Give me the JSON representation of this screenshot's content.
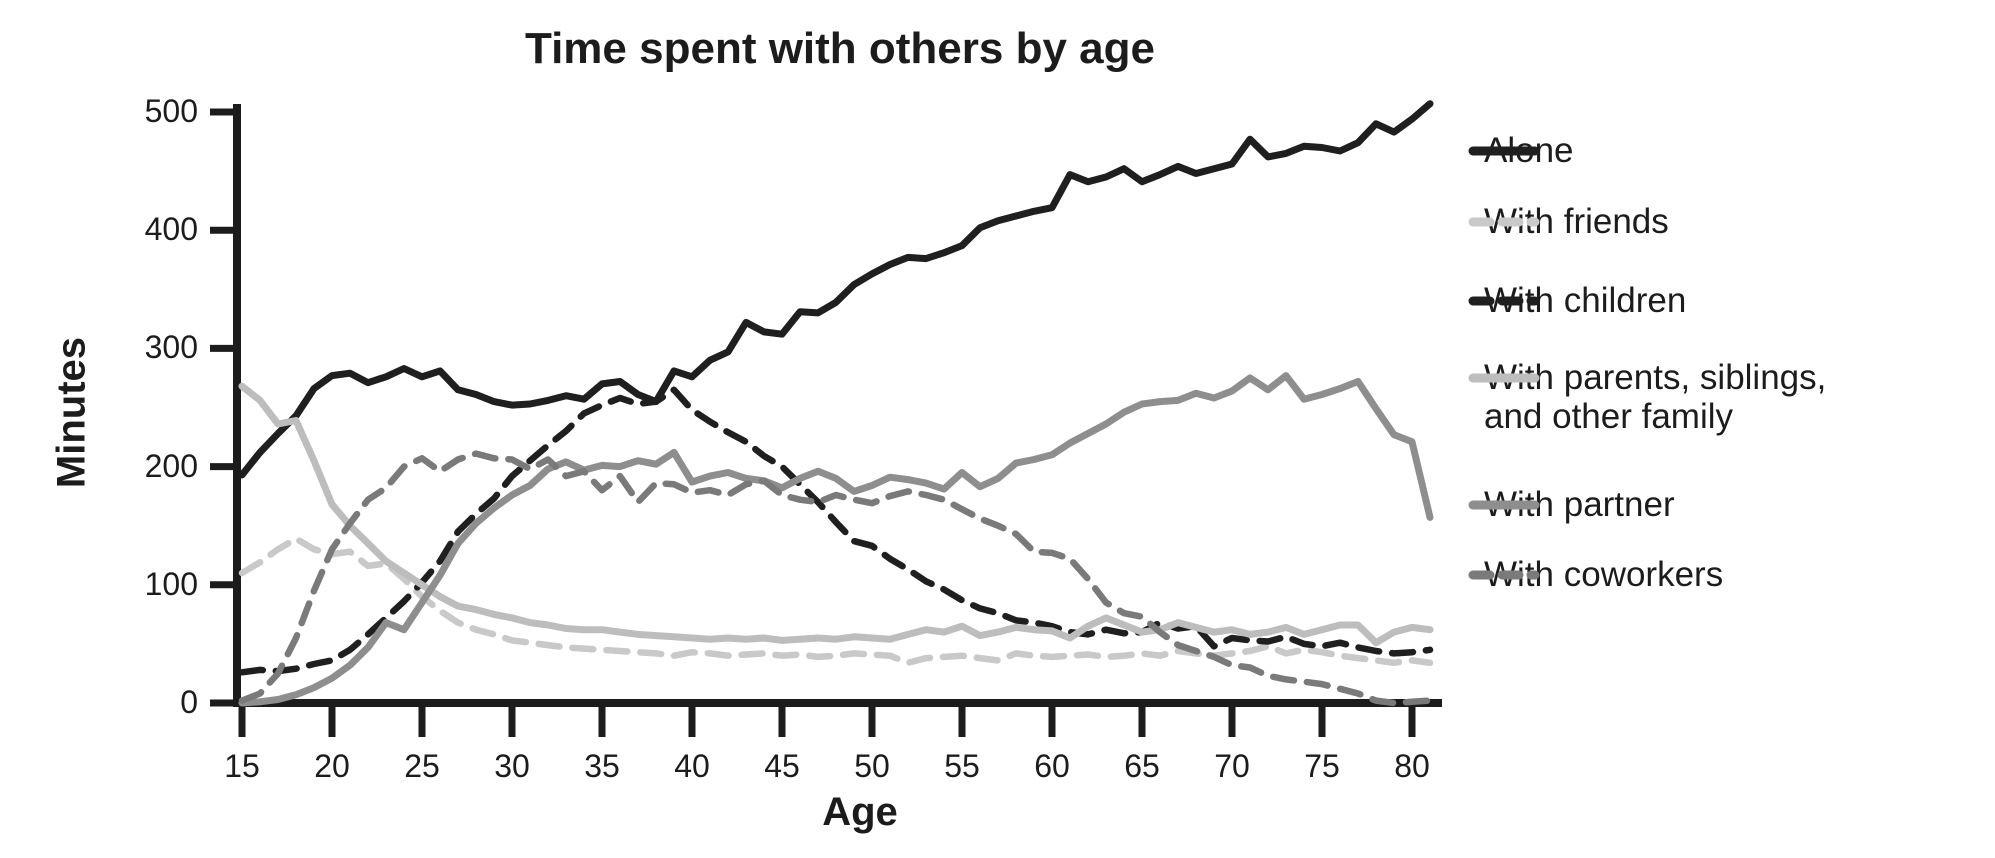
{
  "chart_data": {
    "type": "line",
    "title": "Time spent with others by age",
    "xlabel": "Age",
    "ylabel": "Minutes",
    "xlim": [
      15,
      81
    ],
    "ylim": [
      0,
      500
    ],
    "x_ticks": [
      15,
      20,
      25,
      30,
      35,
      40,
      45,
      50,
      55,
      60,
      65,
      70,
      75,
      80
    ],
    "y_ticks": [
      0,
      100,
      200,
      300,
      400,
      500
    ],
    "grid": false,
    "legend_position": "right",
    "axis_color": "#1c1c1c",
    "x": [
      15,
      16,
      17,
      18,
      19,
      20,
      21,
      22,
      23,
      24,
      25,
      26,
      27,
      28,
      29,
      30,
      31,
      32,
      33,
      34,
      35,
      36,
      37,
      38,
      39,
      40,
      41,
      42,
      43,
      44,
      45,
      46,
      47,
      48,
      49,
      50,
      51,
      52,
      53,
      54,
      55,
      56,
      57,
      58,
      59,
      60,
      61,
      62,
      63,
      64,
      65,
      66,
      67,
      68,
      69,
      70,
      71,
      72,
      73,
      74,
      75,
      76,
      77,
      78,
      79,
      80,
      81
    ],
    "series": [
      {
        "name": "Alone",
        "color": "#1f1f1f",
        "dash": "solid",
        "values": [
          193,
          212,
          228,
          243,
          266,
          277,
          279,
          271,
          276,
          283,
          276,
          281,
          265,
          261,
          255,
          252,
          253,
          256,
          260,
          257,
          270,
          272,
          261,
          255,
          281,
          276,
          290,
          297,
          322,
          314,
          312,
          331,
          330,
          339,
          354,
          363,
          371,
          377,
          376,
          381,
          387,
          402,
          408,
          412,
          416,
          419,
          447,
          441,
          445,
          452,
          441,
          447,
          454,
          448,
          452,
          456,
          477,
          462,
          465,
          471,
          470,
          467,
          474,
          490,
          483,
          494,
          507
        ]
      },
      {
        "name": "With friends",
        "color": "#c9c9c9",
        "dash": "dashed",
        "values": [
          110,
          119,
          130,
          139,
          130,
          126,
          128,
          116,
          118,
          105,
          90,
          78,
          68,
          62,
          58,
          53,
          51,
          49,
          47,
          46,
          45,
          44,
          43,
          42,
          40,
          43,
          42,
          40,
          41,
          42,
          40,
          41,
          39,
          40,
          42,
          41,
          40,
          34,
          38,
          39,
          40,
          38,
          36,
          42,
          40,
          39,
          40,
          41,
          39,
          40,
          42,
          40,
          44,
          42,
          40,
          42,
          44,
          48,
          42,
          45,
          43,
          40,
          38,
          36,
          34,
          36,
          34
        ]
      },
      {
        "name": "With children",
        "color": "#1f1f1f",
        "dash": "dashed",
        "values": [
          26,
          28,
          27,
          29,
          33,
          36,
          45,
          58,
          72,
          86,
          102,
          120,
          145,
          160,
          173,
          192,
          205,
          218,
          230,
          245,
          252,
          258,
          253,
          255,
          265,
          248,
          238,
          229,
          221,
          209,
          200,
          185,
          170,
          153,
          137,
          133,
          122,
          113,
          103,
          96,
          87,
          80,
          76,
          70,
          68,
          65,
          60,
          58,
          62,
          59,
          60,
          68,
          63,
          65,
          48,
          55,
          53,
          52,
          56,
          50,
          48,
          51,
          47,
          44,
          42,
          43,
          45
        ]
      },
      {
        "name": "With parents, siblings, and other family",
        "legend_lines": [
          "With parents, siblings,",
          "and other family"
        ],
        "color": "#bdbdbd",
        "dash": "solid",
        "values": [
          268,
          256,
          236,
          239,
          205,
          168,
          150,
          135,
          120,
          110,
          100,
          90,
          82,
          79,
          75,
          72,
          68,
          66,
          63,
          62,
          62,
          60,
          58,
          57,
          56,
          55,
          54,
          55,
          54,
          55,
          53,
          54,
          55,
          54,
          56,
          55,
          54,
          58,
          62,
          60,
          65,
          57,
          60,
          64,
          62,
          61,
          55,
          65,
          72,
          66,
          60,
          62,
          68,
          64,
          60,
          62,
          58,
          60,
          64,
          58,
          62,
          66,
          66,
          51,
          60,
          64,
          62
        ]
      },
      {
        "name": "With partner",
        "color": "#8e8e8e",
        "dash": "solid",
        "values": [
          0,
          1,
          3,
          7,
          13,
          21,
          32,
          47,
          68,
          62,
          85,
          108,
          135,
          152,
          165,
          176,
          184,
          198,
          204,
          197,
          201,
          200,
          205,
          202,
          212,
          187,
          192,
          195,
          190,
          188,
          182,
          190,
          196,
          190,
          179,
          184,
          191,
          189,
          186,
          181,
          195,
          183,
          190,
          203,
          206,
          210,
          220,
          228,
          236,
          246,
          253,
          255,
          256,
          262,
          258,
          264,
          275,
          265,
          277,
          257,
          261,
          266,
          272,
          249,
          227,
          221,
          157
        ]
      },
      {
        "name": "With coworkers",
        "color": "#7a7a7a",
        "dash": "dashed",
        "values": [
          2,
          8,
          25,
          55,
          95,
          130,
          152,
          172,
          182,
          200,
          207,
          196,
          206,
          211,
          207,
          206,
          198,
          206,
          192,
          196,
          180,
          192,
          170,
          186,
          185,
          178,
          180,
          176,
          185,
          188,
          176,
          172,
          170,
          176,
          172,
          169,
          175,
          179,
          176,
          172,
          164,
          156,
          150,
          143,
          128,
          127,
          122,
          105,
          85,
          76,
          73,
          60,
          49,
          44,
          39,
          32,
          30,
          23,
          20,
          18,
          16,
          12,
          8,
          2,
          0,
          1,
          2
        ]
      }
    ]
  }
}
